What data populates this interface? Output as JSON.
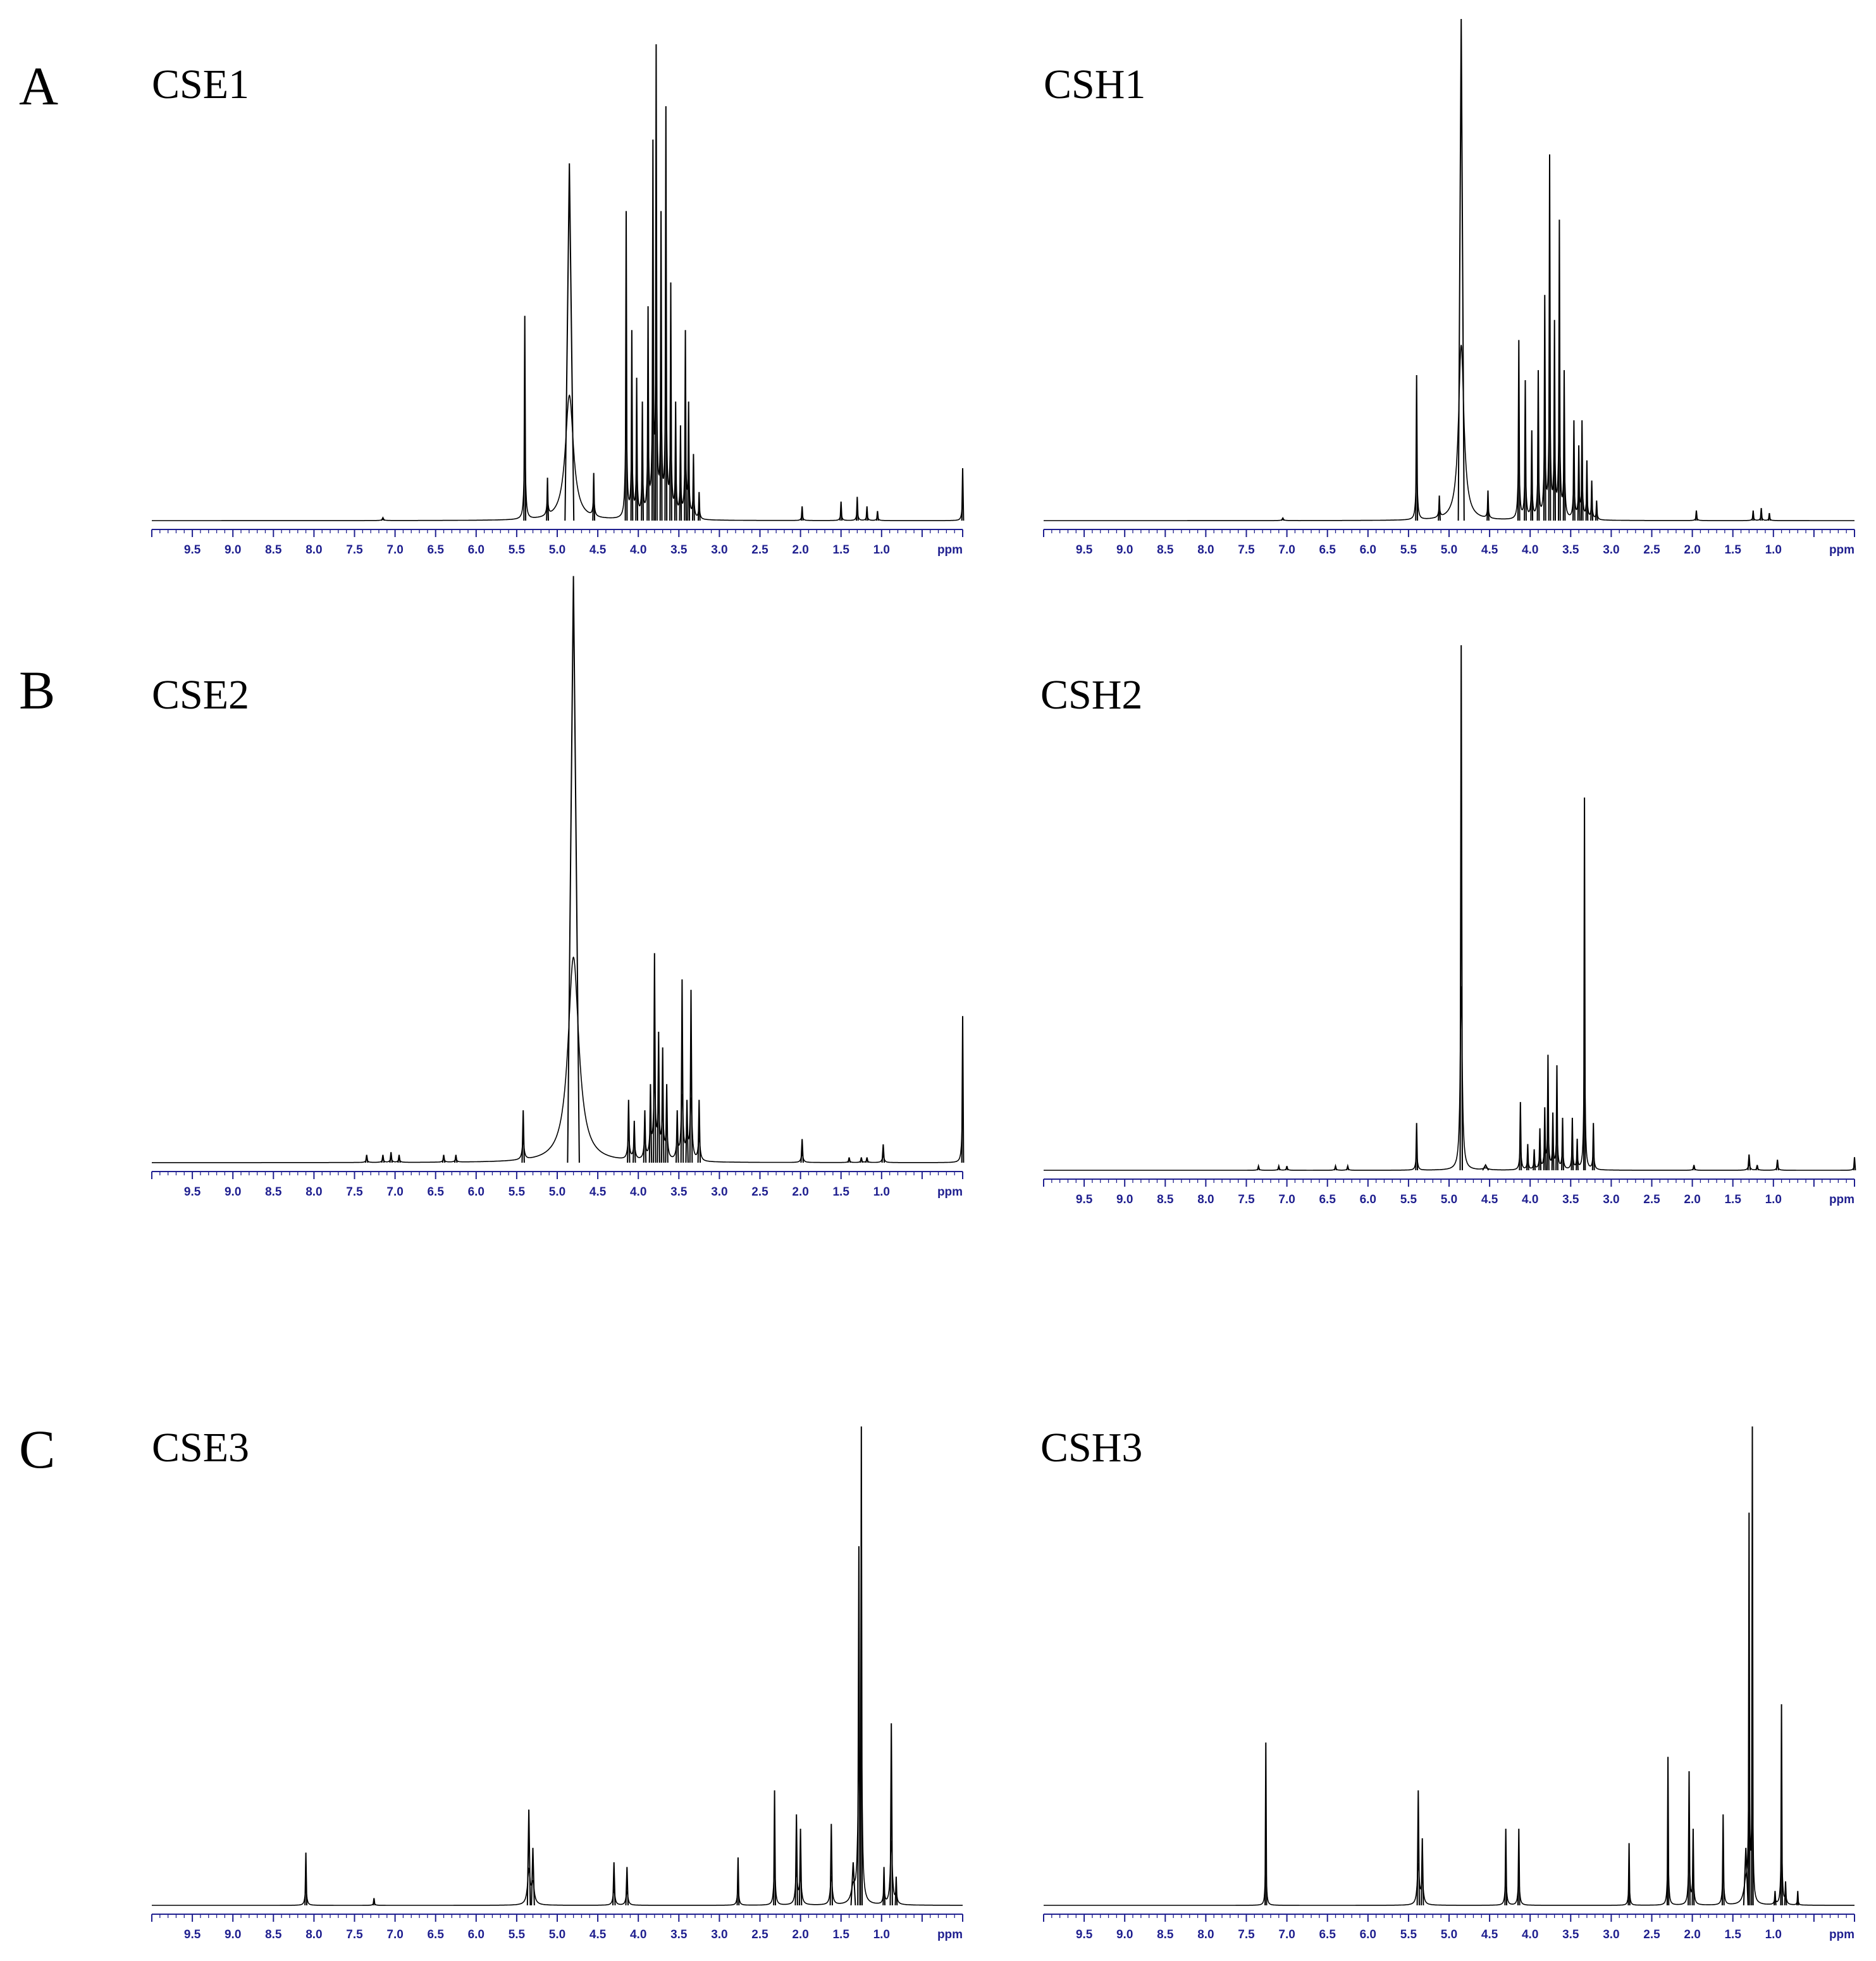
{
  "figure": {
    "panel_letters": [
      "A",
      "B",
      "C"
    ],
    "axis_color": "#1f1f8f",
    "trace_color": "#000000"
  },
  "chart_data": [
    {
      "type": "line",
      "panel": "A",
      "title": "CSE1",
      "xlabel": "ppm",
      "x_unit": "ppm",
      "xlim": [
        10.0,
        0.0
      ],
      "x_axis_reversed": true,
      "x_tick_labels": [
        "9.5",
        "9.0",
        "8.5",
        "8.0",
        "7.5",
        "7.0",
        "6.5",
        "6.0",
        "5.5",
        "5.0",
        "4.5",
        "4.0",
        "3.5",
        "3.0",
        "2.5",
        "2.0",
        "1.5",
        "1.0"
      ],
      "ylim": [
        0,
        100
      ],
      "grid": false,
      "peaks": [
        {
          "ppm": 7.15,
          "height": 0.6,
          "width": 0.02
        },
        {
          "ppm": 5.4,
          "height": 43,
          "width": 0.012
        },
        {
          "ppm": 5.12,
          "height": 9,
          "width": 0.012
        },
        {
          "ppm": 4.85,
          "height": 75,
          "width": 0.06
        },
        {
          "ppm": 4.55,
          "height": 10,
          "width": 0.012
        },
        {
          "ppm": 4.15,
          "height": 65,
          "width": 0.012
        },
        {
          "ppm": 4.08,
          "height": 40,
          "width": 0.012
        },
        {
          "ppm": 4.02,
          "height": 30,
          "width": 0.012
        },
        {
          "ppm": 3.95,
          "height": 25,
          "width": 0.012
        },
        {
          "ppm": 3.88,
          "height": 45,
          "width": 0.012
        },
        {
          "ppm": 3.82,
          "height": 80,
          "width": 0.012
        },
        {
          "ppm": 3.78,
          "height": 100,
          "width": 0.012
        },
        {
          "ppm": 3.72,
          "height": 65,
          "width": 0.012
        },
        {
          "ppm": 3.66,
          "height": 87,
          "width": 0.012
        },
        {
          "ppm": 3.6,
          "height": 50,
          "width": 0.012
        },
        {
          "ppm": 3.54,
          "height": 25,
          "width": 0.012
        },
        {
          "ppm": 3.48,
          "height": 20,
          "width": 0.012
        },
        {
          "ppm": 3.42,
          "height": 40,
          "width": 0.012
        },
        {
          "ppm": 3.38,
          "height": 25,
          "width": 0.012
        },
        {
          "ppm": 3.32,
          "height": 14,
          "width": 0.012
        },
        {
          "ppm": 3.25,
          "height": 6,
          "width": 0.012
        },
        {
          "ppm": 1.98,
          "height": 3,
          "width": 0.012
        },
        {
          "ppm": 1.5,
          "height": 4,
          "width": 0.012
        },
        {
          "ppm": 1.3,
          "height": 5,
          "width": 0.012
        },
        {
          "ppm": 1.18,
          "height": 3,
          "width": 0.012
        },
        {
          "ppm": 1.05,
          "height": 2,
          "width": 0.012
        },
        {
          "ppm": 0.0,
          "height": 11,
          "width": 0.012
        }
      ]
    },
    {
      "type": "line",
      "panel": "A",
      "title": "CSH1",
      "xlabel": "ppm",
      "x_unit": "ppm",
      "xlim": [
        10.0,
        0.0
      ],
      "x_axis_reversed": true,
      "x_tick_labels": [
        "9.5",
        "9.0",
        "8.5",
        "8.0",
        "7.5",
        "7.0",
        "6.5",
        "6.0",
        "5.5",
        "5.0",
        "4.5",
        "4.0",
        "3.5",
        "3.0",
        "2.5",
        "2.0",
        "1.5",
        "1.0"
      ],
      "ylim": [
        0,
        100
      ],
      "grid": false,
      "peaks": [
        {
          "ppm": 7.05,
          "height": 0.5,
          "width": 0.02
        },
        {
          "ppm": 5.4,
          "height": 29,
          "width": 0.012
        },
        {
          "ppm": 5.12,
          "height": 5,
          "width": 0.012
        },
        {
          "ppm": 4.85,
          "height": 100,
          "width": 0.04
        },
        {
          "ppm": 4.52,
          "height": 6,
          "width": 0.012
        },
        {
          "ppm": 4.14,
          "height": 36,
          "width": 0.012
        },
        {
          "ppm": 4.06,
          "height": 28,
          "width": 0.012
        },
        {
          "ppm": 3.98,
          "height": 18,
          "width": 0.012
        },
        {
          "ppm": 3.9,
          "height": 30,
          "width": 0.012
        },
        {
          "ppm": 3.82,
          "height": 45,
          "width": 0.012
        },
        {
          "ppm": 3.76,
          "height": 73,
          "width": 0.012
        },
        {
          "ppm": 3.7,
          "height": 40,
          "width": 0.012
        },
        {
          "ppm": 3.64,
          "height": 60,
          "width": 0.012
        },
        {
          "ppm": 3.58,
          "height": 30,
          "width": 0.012
        },
        {
          "ppm": 3.46,
          "height": 20,
          "width": 0.012
        },
        {
          "ppm": 3.4,
          "height": 15,
          "width": 0.012
        },
        {
          "ppm": 3.36,
          "height": 20,
          "width": 0.012
        },
        {
          "ppm": 3.3,
          "height": 12,
          "width": 0.012
        },
        {
          "ppm": 3.24,
          "height": 8,
          "width": 0.012
        },
        {
          "ppm": 3.18,
          "height": 4,
          "width": 0.012
        },
        {
          "ppm": 1.95,
          "height": 2,
          "width": 0.012
        },
        {
          "ppm": 1.25,
          "height": 2,
          "width": 0.012
        },
        {
          "ppm": 1.15,
          "height": 2.5,
          "width": 0.012
        },
        {
          "ppm": 1.05,
          "height": 1.5,
          "width": 0.012
        }
      ]
    },
    {
      "type": "line",
      "panel": "B",
      "title": "CSE2",
      "xlabel": "ppm",
      "x_unit": "ppm",
      "xlim": [
        10.0,
        0.0
      ],
      "x_axis_reversed": true,
      "x_tick_labels": [
        "9.5",
        "9.0",
        "8.5",
        "8.0",
        "7.5",
        "7.0",
        "6.5",
        "6.0",
        "5.5",
        "5.0",
        "4.5",
        "4.0",
        "3.5",
        "3.0",
        "2.5",
        "2.0",
        "1.5",
        "1.0"
      ],
      "ylim": [
        0,
        100
      ],
      "grid": false,
      "peaks": [
        {
          "ppm": 7.35,
          "height": 1.5,
          "width": 0.015
        },
        {
          "ppm": 7.15,
          "height": 1.5,
          "width": 0.015
        },
        {
          "ppm": 7.05,
          "height": 2,
          "width": 0.015
        },
        {
          "ppm": 6.95,
          "height": 1.5,
          "width": 0.015
        },
        {
          "ppm": 6.4,
          "height": 1.5,
          "width": 0.015
        },
        {
          "ppm": 6.25,
          "height": 1.5,
          "width": 0.015
        },
        {
          "ppm": 5.42,
          "height": 10,
          "width": 0.015
        },
        {
          "ppm": 4.8,
          "height": 112,
          "width": 0.08
        },
        {
          "ppm": 4.12,
          "height": 12,
          "width": 0.015
        },
        {
          "ppm": 4.05,
          "height": 8,
          "width": 0.015
        },
        {
          "ppm": 3.92,
          "height": 10,
          "width": 0.015
        },
        {
          "ppm": 3.85,
          "height": 15,
          "width": 0.015
        },
        {
          "ppm": 3.8,
          "height": 40,
          "width": 0.015
        },
        {
          "ppm": 3.75,
          "height": 25,
          "width": 0.015
        },
        {
          "ppm": 3.7,
          "height": 22,
          "width": 0.015
        },
        {
          "ppm": 3.65,
          "height": 15,
          "width": 0.015
        },
        {
          "ppm": 3.52,
          "height": 10,
          "width": 0.015
        },
        {
          "ppm": 3.46,
          "height": 35,
          "width": 0.015
        },
        {
          "ppm": 3.4,
          "height": 12,
          "width": 0.015
        },
        {
          "ppm": 3.35,
          "height": 33,
          "width": 0.015
        },
        {
          "ppm": 3.25,
          "height": 12,
          "width": 0.015
        },
        {
          "ppm": 1.98,
          "height": 4.5,
          "width": 0.015
        },
        {
          "ppm": 1.4,
          "height": 1,
          "width": 0.015
        },
        {
          "ppm": 1.25,
          "height": 1,
          "width": 0.015
        },
        {
          "ppm": 1.18,
          "height": 1,
          "width": 0.015
        },
        {
          "ppm": 0.98,
          "height": 3.5,
          "width": 0.015
        },
        {
          "ppm": 0.0,
          "height": 28,
          "width": 0.012
        }
      ]
    },
    {
      "type": "line",
      "panel": "B",
      "title": "CSH2",
      "xlabel": "ppm",
      "x_unit": "ppm",
      "xlim": [
        10.0,
        0.0
      ],
      "x_axis_reversed": true,
      "x_tick_labels": [
        "9.5",
        "9.0",
        "8.5",
        "8.0",
        "7.5",
        "7.0",
        "6.5",
        "6.0",
        "5.5",
        "5.0",
        "4.5",
        "4.0",
        "3.5",
        "3.0",
        "2.5",
        "2.0",
        "1.5",
        "1.0"
      ],
      "ylim": [
        0,
        100
      ],
      "grid": false,
      "peaks": [
        {
          "ppm": 7.35,
          "height": 0.8,
          "width": 0.015
        },
        {
          "ppm": 7.1,
          "height": 0.8,
          "width": 0.015
        },
        {
          "ppm": 7.0,
          "height": 0.8,
          "width": 0.015
        },
        {
          "ppm": 6.4,
          "height": 0.8,
          "width": 0.015
        },
        {
          "ppm": 6.25,
          "height": 0.8,
          "width": 0.015
        },
        {
          "ppm": 5.4,
          "height": 9,
          "width": 0.012
        },
        {
          "ppm": 4.85,
          "height": 100,
          "width": 0.015
        },
        {
          "ppm": 4.55,
          "height": 1,
          "width": 0.04
        },
        {
          "ppm": 4.12,
          "height": 13,
          "width": 0.012
        },
        {
          "ppm": 4.03,
          "height": 5,
          "width": 0.012
        },
        {
          "ppm": 3.95,
          "height": 4,
          "width": 0.012
        },
        {
          "ppm": 3.88,
          "height": 8,
          "width": 0.012
        },
        {
          "ppm": 3.82,
          "height": 12,
          "width": 0.012
        },
        {
          "ppm": 3.78,
          "height": 22,
          "width": 0.012
        },
        {
          "ppm": 3.72,
          "height": 11,
          "width": 0.012
        },
        {
          "ppm": 3.67,
          "height": 20,
          "width": 0.012
        },
        {
          "ppm": 3.6,
          "height": 10,
          "width": 0.012
        },
        {
          "ppm": 3.48,
          "height": 10,
          "width": 0.012
        },
        {
          "ppm": 3.42,
          "height": 6,
          "width": 0.012
        },
        {
          "ppm": 3.33,
          "height": 71,
          "width": 0.01
        },
        {
          "ppm": 3.22,
          "height": 9,
          "width": 0.012
        },
        {
          "ppm": 1.98,
          "height": 1,
          "width": 0.015
        },
        {
          "ppm": 1.3,
          "height": 3,
          "width": 0.015
        },
        {
          "ppm": 1.2,
          "height": 1,
          "width": 0.015
        },
        {
          "ppm": 0.95,
          "height": 2,
          "width": 0.015
        },
        {
          "ppm": 0.0,
          "height": 2.5,
          "width": 0.012
        }
      ]
    },
    {
      "type": "line",
      "panel": "C",
      "title": "CSE3",
      "xlabel": "ppm",
      "x_unit": "ppm",
      "xlim": [
        10.0,
        0.0
      ],
      "x_axis_reversed": true,
      "x_tick_labels": [
        "9.5",
        "9.0",
        "8.5",
        "8.0",
        "7.5",
        "7.0",
        "6.5",
        "6.0",
        "5.5",
        "5.0",
        "4.5",
        "4.0",
        "3.5",
        "3.0",
        "2.5",
        "2.0",
        "1.5",
        "1.0"
      ],
      "ylim": [
        0,
        100
      ],
      "grid": false,
      "peaks": [
        {
          "ppm": 8.1,
          "height": 11,
          "width": 0.012
        },
        {
          "ppm": 7.26,
          "height": 1.5,
          "width": 0.012
        },
        {
          "ppm": 5.35,
          "height": 20,
          "width": 0.02
        },
        {
          "ppm": 5.3,
          "height": 12,
          "width": 0.02
        },
        {
          "ppm": 4.3,
          "height": 9,
          "width": 0.015
        },
        {
          "ppm": 4.14,
          "height": 8,
          "width": 0.015
        },
        {
          "ppm": 2.77,
          "height": 10,
          "width": 0.012
        },
        {
          "ppm": 2.32,
          "height": 24,
          "width": 0.012
        },
        {
          "ppm": 2.05,
          "height": 19,
          "width": 0.015
        },
        {
          "ppm": 2.0,
          "height": 16,
          "width": 0.015
        },
        {
          "ppm": 1.62,
          "height": 17,
          "width": 0.015
        },
        {
          "ppm": 1.35,
          "height": 9,
          "width": 0.03
        },
        {
          "ppm": 1.28,
          "height": 75,
          "width": 0.015
        },
        {
          "ppm": 1.25,
          "height": 100,
          "width": 0.012
        },
        {
          "ppm": 0.97,
          "height": 8,
          "width": 0.012
        },
        {
          "ppm": 0.88,
          "height": 38,
          "width": 0.015
        },
        {
          "ppm": 0.82,
          "height": 6,
          "width": 0.012
        }
      ]
    },
    {
      "type": "line",
      "panel": "C",
      "title": "CSH3",
      "xlabel": "ppm",
      "x_unit": "ppm",
      "xlim": [
        10.0,
        0.0
      ],
      "x_axis_reversed": true,
      "x_tick_labels": [
        "9.5",
        "9.0",
        "8.5",
        "8.0",
        "7.5",
        "7.0",
        "6.5",
        "6.0",
        "5.5",
        "5.0",
        "4.5",
        "4.0",
        "3.5",
        "3.0",
        "2.5",
        "2.0",
        "1.5",
        "1.0"
      ],
      "ylim": [
        0,
        100
      ],
      "grid": false,
      "peaks": [
        {
          "ppm": 7.26,
          "height": 34,
          "width": 0.008
        },
        {
          "ppm": 5.38,
          "height": 24,
          "width": 0.015
        },
        {
          "ppm": 5.33,
          "height": 14,
          "width": 0.015
        },
        {
          "ppm": 4.3,
          "height": 16,
          "width": 0.012
        },
        {
          "ppm": 4.14,
          "height": 16,
          "width": 0.012
        },
        {
          "ppm": 2.78,
          "height": 13,
          "width": 0.01
        },
        {
          "ppm": 2.3,
          "height": 31,
          "width": 0.01
        },
        {
          "ppm": 2.04,
          "height": 28,
          "width": 0.012
        },
        {
          "ppm": 1.99,
          "height": 16,
          "width": 0.012
        },
        {
          "ppm": 1.62,
          "height": 19,
          "width": 0.012
        },
        {
          "ppm": 1.34,
          "height": 12,
          "width": 0.03
        },
        {
          "ppm": 1.3,
          "height": 82,
          "width": 0.01
        },
        {
          "ppm": 1.26,
          "height": 100,
          "width": 0.008
        },
        {
          "ppm": 0.98,
          "height": 3,
          "width": 0.012
        },
        {
          "ppm": 0.9,
          "height": 42,
          "width": 0.01
        },
        {
          "ppm": 0.85,
          "height": 5,
          "width": 0.012
        },
        {
          "ppm": 0.7,
          "height": 3,
          "width": 0.01
        }
      ]
    }
  ]
}
